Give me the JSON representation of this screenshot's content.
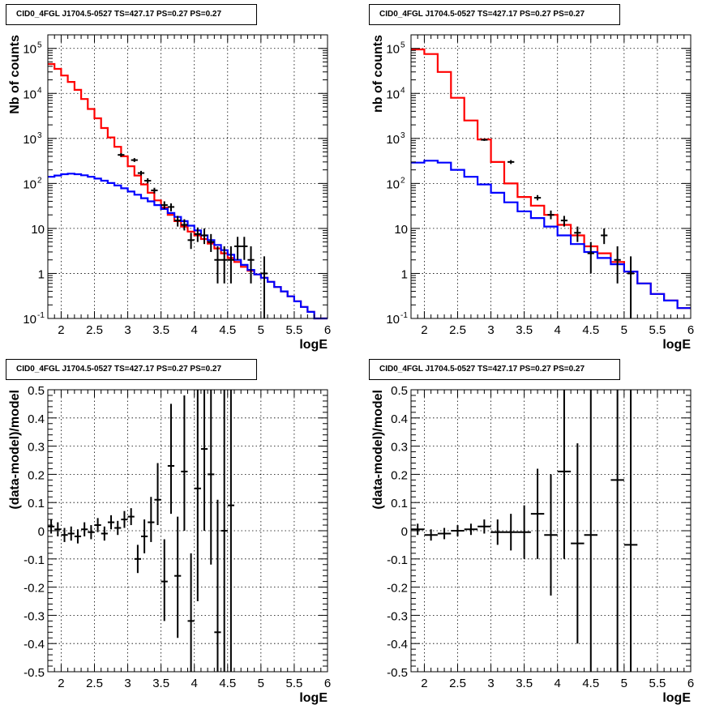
{
  "chart_data": [
    {
      "id": "p1",
      "type": "step_histogram",
      "title": "CID0_4FGL J1704.5-0527 TS=427.17 PS=0.27 PS=0.27",
      "xlabel": "logE",
      "ylabel": "Nb of counts",
      "xlim": [
        1.8,
        6.0
      ],
      "ylim": [
        0.1,
        200000
      ],
      "yscale": "log",
      "grid": true,
      "xticks": [
        2,
        2.5,
        3,
        3.5,
        4,
        4.5,
        5,
        5.5,
        6
      ],
      "xtick_labels": [
        "2",
        "2.5",
        "3",
        "3.5",
        "4",
        "4.5",
        "5",
        "5.5",
        "6"
      ],
      "yticks": [
        0.1,
        1,
        10,
        100,
        1000,
        10000,
        100000
      ],
      "ytick_labels": [
        "10^-1",
        "1",
        "10",
        "10^2",
        "10^3",
        "10^4",
        "10^5"
      ],
      "bin_edges": [
        1.8,
        1.9,
        2.0,
        2.1,
        2.2,
        2.3,
        2.4,
        2.5,
        2.6,
        2.7,
        2.8,
        2.9,
        3.0,
        3.1,
        3.2,
        3.3,
        3.4,
        3.5,
        3.6,
        3.7,
        3.8,
        3.9,
        4.0,
        4.1,
        4.2,
        4.3,
        4.4,
        4.5,
        4.6,
        4.7,
        4.8,
        4.9,
        5.0,
        5.1,
        5.2,
        5.3,
        5.4,
        5.5,
        5.6,
        5.7,
        5.8,
        5.9,
        6.0
      ],
      "series": [
        {
          "color": "#ff0000",
          "values": [
            45000,
            35000,
            25000,
            18000,
            12000,
            7500,
            4500,
            2800,
            1700,
            1050,
            650,
            400,
            240,
            150,
            95,
            62,
            42,
            29,
            20,
            14.5,
            11,
            8.5,
            7,
            5.8,
            4.6,
            3.6,
            2.8,
            2.2,
            1.8,
            1.4,
            1.15,
            0.95,
            0.8,
            0.65,
            0.5,
            0.4,
            0.31,
            0.24,
            0.18,
            0.14,
            0.1,
            0.075
          ]
        },
        {
          "color": "#0000ff",
          "values": [
            140,
            150,
            160,
            165,
            160,
            152,
            140,
            128,
            115,
            102,
            90,
            78,
            66,
            56,
            47,
            40,
            33,
            27,
            22,
            18,
            14.5,
            11.5,
            9,
            7,
            5.5,
            4.3,
            3.3,
            2.6,
            2.0,
            1.55,
            1.2,
            0.95,
            0.8,
            0.65,
            0.5,
            0.4,
            0.31,
            0.24,
            0.18,
            0.14,
            0.1,
            0.075
          ]
        }
      ],
      "points": [
        {
          "x": 2.9,
          "y": 430,
          "ylo": 390,
          "yhi": 470
        },
        {
          "x": 3.1,
          "y": 330,
          "ylo": 300,
          "yhi": 365
        },
        {
          "x": 3.2,
          "y": 170,
          "ylo": 150,
          "yhi": 190
        },
        {
          "x": 3.3,
          "y": 115,
          "ylo": 100,
          "yhi": 130
        },
        {
          "x": 3.4,
          "y": 70,
          "ylo": 60,
          "yhi": 80
        },
        {
          "x": 3.55,
          "y": 33,
          "ylo": 27,
          "yhi": 40
        },
        {
          "x": 3.65,
          "y": 30,
          "ylo": 24,
          "yhi": 36
        },
        {
          "x": 3.75,
          "y": 15,
          "ylo": 11,
          "yhi": 19
        },
        {
          "x": 3.85,
          "y": 12,
          "ylo": 9,
          "yhi": 16
        },
        {
          "x": 3.95,
          "y": 5.5,
          "ylo": 3.5,
          "yhi": 8
        },
        {
          "x": 4.05,
          "y": 7.5,
          "ylo": 5,
          "yhi": 10.5
        },
        {
          "x": 4.15,
          "y": 7,
          "ylo": 4.5,
          "yhi": 10
        },
        {
          "x": 4.25,
          "y": 5,
          "ylo": 3,
          "yhi": 7.5
        },
        {
          "x": 4.35,
          "y": 2,
          "ylo": 0.6,
          "yhi": 4
        },
        {
          "x": 4.45,
          "y": 2,
          "ylo": 0.6,
          "yhi": 4
        },
        {
          "x": 4.55,
          "y": 2,
          "ylo": 0.6,
          "yhi": 4
        },
        {
          "x": 4.65,
          "y": 4,
          "ylo": 2,
          "yhi": 6.5
        },
        {
          "x": 4.75,
          "y": 4,
          "ylo": 2,
          "yhi": 6.5
        },
        {
          "x": 4.85,
          "y": 2,
          "ylo": 0.6,
          "yhi": 4
        },
        {
          "x": 5.05,
          "y": 1,
          "ylo": 0.1,
          "yhi": 2.4
        }
      ]
    },
    {
      "id": "p2",
      "type": "step_histogram",
      "title": "CID0_4FGL J1704.5-0527 TS=427.17 PS=0.27 PS=0.27",
      "xlabel": "logE",
      "ylabel": "nb of counts",
      "xlim": [
        1.8,
        6.0
      ],
      "ylim": [
        0.1,
        200000
      ],
      "yscale": "log",
      "grid": true,
      "xticks": [
        2,
        2.5,
        3,
        3.5,
        4,
        4.5,
        5,
        5.5,
        6
      ],
      "xtick_labels": [
        "2",
        "2.5",
        "3",
        "3.5",
        "4",
        "4.5",
        "5",
        "5.5",
        "6"
      ],
      "yticks": [
        0.1,
        1,
        10,
        100,
        1000,
        10000,
        100000
      ],
      "ytick_labels": [
        "10^-1",
        "1",
        "10",
        "10^2",
        "10^3",
        "10^4",
        "10^5"
      ],
      "bin_edges": [
        1.8,
        2.0,
        2.2,
        2.4,
        2.6,
        2.8,
        3.0,
        3.2,
        3.4,
        3.6,
        3.8,
        4.0,
        4.2,
        4.4,
        4.6,
        4.8,
        5.0,
        5.2,
        5.4,
        5.6,
        5.8,
        6.0
      ],
      "series": [
        {
          "color": "#ff0000",
          "values": [
            95000,
            75000,
            30000,
            8000,
            2500,
            950,
            300,
            100,
            50,
            32,
            20,
            12,
            7,
            4,
            2.8,
            1.8,
            1.1,
            0.6,
            0.35,
            0.25,
            0.17
          ]
        },
        {
          "color": "#0000ff",
          "values": [
            290,
            320,
            290,
            200,
            140,
            95,
            62,
            38,
            24,
            17,
            11,
            7,
            4.5,
            3,
            2.2,
            1.6,
            1.1,
            0.6,
            0.35,
            0.25,
            0.17
          ]
        }
      ],
      "points": [
        {
          "x": 2.9,
          "y": 930,
          "ylo": 880,
          "yhi": 980
        },
        {
          "x": 3.3,
          "y": 300,
          "ylo": 270,
          "yhi": 330
        },
        {
          "x": 3.7,
          "y": 48,
          "ylo": 42,
          "yhi": 55
        },
        {
          "x": 3.9,
          "y": 20,
          "ylo": 16,
          "yhi": 25
        },
        {
          "x": 4.1,
          "y": 15,
          "ylo": 11,
          "yhi": 19
        },
        {
          "x": 4.3,
          "y": 8,
          "ylo": 5,
          "yhi": 11
        },
        {
          "x": 4.5,
          "y": 2.8,
          "ylo": 1,
          "yhi": 5
        },
        {
          "x": 4.7,
          "y": 7,
          "ylo": 4.5,
          "yhi": 10
        },
        {
          "x": 4.9,
          "y": 2,
          "ylo": 0.6,
          "yhi": 4
        },
        {
          "x": 5.1,
          "y": 1,
          "ylo": 0.1,
          "yhi": 2.4
        }
      ]
    },
    {
      "id": "p3",
      "type": "scatter_errorbars",
      "title": "CID0_4FGL J1704.5-0527 TS=427.17 PS=0.27 PS=0.27",
      "xlabel": "logE",
      "ylabel": "(data-model)/model",
      "xlim": [
        1.8,
        6.0
      ],
      "ylim": [
        -0.5,
        0.5
      ],
      "yscale": "linear",
      "grid": true,
      "xticks": [
        2,
        2.5,
        3,
        3.5,
        4,
        4.5,
        5,
        5.5,
        6
      ],
      "xtick_labels": [
        "2",
        "2.5",
        "3",
        "3.5",
        "4",
        "4.5",
        "5",
        "5.5",
        "6"
      ],
      "yticks": [
        -0.5,
        -0.4,
        -0.3,
        -0.2,
        -0.1,
        0,
        0.1,
        0.2,
        0.3,
        0.4,
        0.5
      ],
      "ytick_labels": [
        "-0.5",
        "-0.4",
        "-0.3",
        "-0.2",
        "-0.1",
        "0",
        "0.1",
        "0.2",
        "0.3",
        "0.4",
        "0.5"
      ],
      "xerr": 0.05,
      "points": [
        {
          "x": 1.85,
          "y": 0.015,
          "ylo": -0.01,
          "yhi": 0.04
        },
        {
          "x": 1.95,
          "y": 0.005,
          "ylo": -0.02,
          "yhi": 0.03
        },
        {
          "x": 2.05,
          "y": -0.015,
          "ylo": -0.04,
          "yhi": 0.01
        },
        {
          "x": 2.15,
          "y": -0.01,
          "ylo": -0.035,
          "yhi": 0.015
        },
        {
          "x": 2.25,
          "y": -0.02,
          "ylo": -0.045,
          "yhi": 0.005
        },
        {
          "x": 2.35,
          "y": 0.005,
          "ylo": -0.02,
          "yhi": 0.03
        },
        {
          "x": 2.45,
          "y": -0.005,
          "ylo": -0.03,
          "yhi": 0.02
        },
        {
          "x": 2.55,
          "y": 0.02,
          "ylo": -0.005,
          "yhi": 0.045
        },
        {
          "x": 2.65,
          "y": -0.01,
          "ylo": -0.035,
          "yhi": 0.015
        },
        {
          "x": 2.75,
          "y": 0.03,
          "ylo": 0.005,
          "yhi": 0.055
        },
        {
          "x": 2.85,
          "y": 0.01,
          "ylo": -0.015,
          "yhi": 0.035
        },
        {
          "x": 2.95,
          "y": 0.04,
          "ylo": 0.01,
          "yhi": 0.07
        },
        {
          "x": 3.05,
          "y": 0.05,
          "ylo": 0.02,
          "yhi": 0.08
        },
        {
          "x": 3.15,
          "y": -0.1,
          "ylo": -0.15,
          "yhi": -0.05
        },
        {
          "x": 3.25,
          "y": -0.02,
          "ylo": -0.08,
          "yhi": 0.04
        },
        {
          "x": 3.35,
          "y": 0.03,
          "ylo": -0.04,
          "yhi": 0.12
        },
        {
          "x": 3.45,
          "y": 0.11,
          "ylo": 0.02,
          "yhi": 0.24
        },
        {
          "x": 3.55,
          "y": -0.18,
          "ylo": -0.32,
          "yhi": -0.03
        },
        {
          "x": 3.65,
          "y": 0.23,
          "ylo": 0.06,
          "yhi": 0.45
        },
        {
          "x": 3.75,
          "y": -0.16,
          "ylo": -0.38,
          "yhi": 0.05
        },
        {
          "x": 3.85,
          "y": 0.21,
          "ylo": 0.0,
          "yhi": 0.48
        },
        {
          "x": 3.95,
          "y": -0.32,
          "ylo": -0.5,
          "yhi": -0.08
        },
        {
          "x": 4.05,
          "y": 0.15,
          "ylo": -0.25,
          "yhi": 0.5
        },
        {
          "x": 4.15,
          "y": 0.29,
          "ylo": 0.0,
          "yhi": 0.5
        },
        {
          "x": 4.25,
          "y": 0.2,
          "ylo": -0.12,
          "yhi": 0.5
        },
        {
          "x": 4.35,
          "y": -0.36,
          "ylo": -0.5,
          "yhi": 0.11
        },
        {
          "x": 4.45,
          "y": 0.0,
          "ylo": -0.5,
          "yhi": 0.5
        },
        {
          "x": 4.55,
          "y": 0.09,
          "ylo": -0.5,
          "yhi": 0.5
        }
      ]
    },
    {
      "id": "p4",
      "type": "scatter_errorbars",
      "title": "CID0_4FGL J1704.5-0527 TS=427.17 PS=0.27 PS=0.27",
      "xlabel": "logE",
      "ylabel": "(data-model)/model",
      "xlim": [
        1.8,
        6.0
      ],
      "ylim": [
        -0.5,
        0.5
      ],
      "yscale": "linear",
      "grid": true,
      "xticks": [
        2,
        2.5,
        3,
        3.5,
        4,
        4.5,
        5,
        5.5,
        6
      ],
      "xtick_labels": [
        "2",
        "2.5",
        "3",
        "3.5",
        "4",
        "4.5",
        "5",
        "5.5",
        "6"
      ],
      "yticks": [
        -0.5,
        -0.4,
        -0.3,
        -0.2,
        -0.1,
        0,
        0.1,
        0.2,
        0.3,
        0.4,
        0.5
      ],
      "ytick_labels": [
        "-0.5",
        "-0.4",
        "-0.3",
        "-0.2",
        "-0.1",
        "0",
        "0.1",
        "0.2",
        "0.3",
        "0.4",
        "0.5"
      ],
      "xerr": 0.1,
      "points": [
        {
          "x": 1.9,
          "y": 0.005,
          "ylo": -0.015,
          "yhi": 0.025
        },
        {
          "x": 2.1,
          "y": -0.015,
          "ylo": -0.035,
          "yhi": 0.005
        },
        {
          "x": 2.3,
          "y": -0.01,
          "ylo": -0.03,
          "yhi": 0.01
        },
        {
          "x": 2.5,
          "y": 0.0,
          "ylo": -0.02,
          "yhi": 0.02
        },
        {
          "x": 2.7,
          "y": 0.005,
          "ylo": -0.015,
          "yhi": 0.025
        },
        {
          "x": 2.9,
          "y": 0.015,
          "ylo": -0.01,
          "yhi": 0.04
        },
        {
          "x": 3.1,
          "y": -0.005,
          "ylo": -0.05,
          "yhi": 0.04
        },
        {
          "x": 3.3,
          "y": -0.005,
          "ylo": -0.07,
          "yhi": 0.06
        },
        {
          "x": 3.5,
          "y": -0.005,
          "ylo": -0.1,
          "yhi": 0.09
        },
        {
          "x": 3.7,
          "y": 0.06,
          "ylo": -0.1,
          "yhi": 0.22
        },
        {
          "x": 3.9,
          "y": -0.015,
          "ylo": -0.23,
          "yhi": 0.2
        },
        {
          "x": 4.1,
          "y": 0.21,
          "ylo": -0.1,
          "yhi": 0.5
        },
        {
          "x": 4.3,
          "y": -0.045,
          "ylo": -0.4,
          "yhi": 0.31
        },
        {
          "x": 4.5,
          "y": -0.015,
          "ylo": -0.5,
          "yhi": 0.5
        },
        {
          "x": 4.9,
          "y": 0.18,
          "ylo": -0.5,
          "yhi": 0.5
        },
        {
          "x": 5.1,
          "y": -0.05,
          "ylo": -0.5,
          "yhi": 0.5
        }
      ]
    }
  ]
}
